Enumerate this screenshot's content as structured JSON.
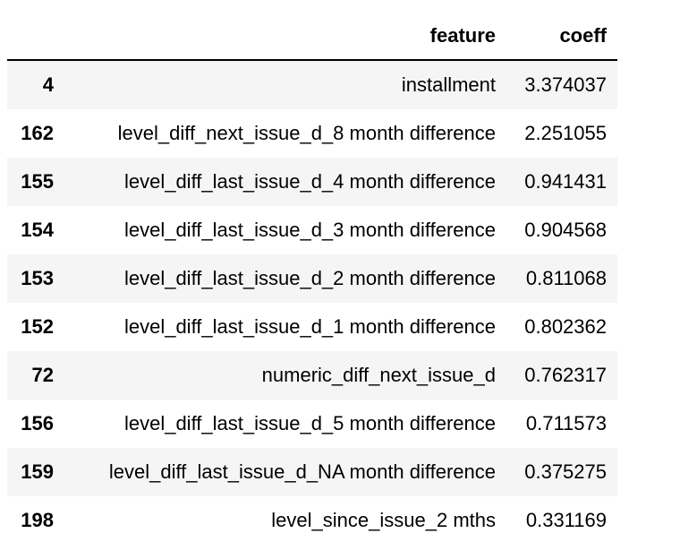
{
  "table": {
    "columns": [
      "",
      "feature",
      "coeff"
    ],
    "rows": [
      {
        "index": "4",
        "feature": "installment",
        "coeff": "3.374037"
      },
      {
        "index": "162",
        "feature": "level_diff_next_issue_d_8 month difference",
        "coeff": "2.251055"
      },
      {
        "index": "155",
        "feature": "level_diff_last_issue_d_4 month difference",
        "coeff": "0.941431"
      },
      {
        "index": "154",
        "feature": "level_diff_last_issue_d_3 month difference",
        "coeff": "0.904568"
      },
      {
        "index": "153",
        "feature": "level_diff_last_issue_d_2 month difference",
        "coeff": "0.811068"
      },
      {
        "index": "152",
        "feature": "level_diff_last_issue_d_1 month difference",
        "coeff": "0.802362"
      },
      {
        "index": "72",
        "feature": "numeric_diff_next_issue_d",
        "coeff": "0.762317"
      },
      {
        "index": "156",
        "feature": "level_diff_last_issue_d_5 month difference",
        "coeff": "0.711573"
      },
      {
        "index": "159",
        "feature": "level_diff_last_issue_d_NA month difference",
        "coeff": "0.375275"
      },
      {
        "index": "198",
        "feature": "level_since_issue_2 mths",
        "coeff": "0.331169"
      }
    ]
  },
  "colors": {
    "stripe": "#f5f5f5",
    "header_rule": "#000000"
  }
}
